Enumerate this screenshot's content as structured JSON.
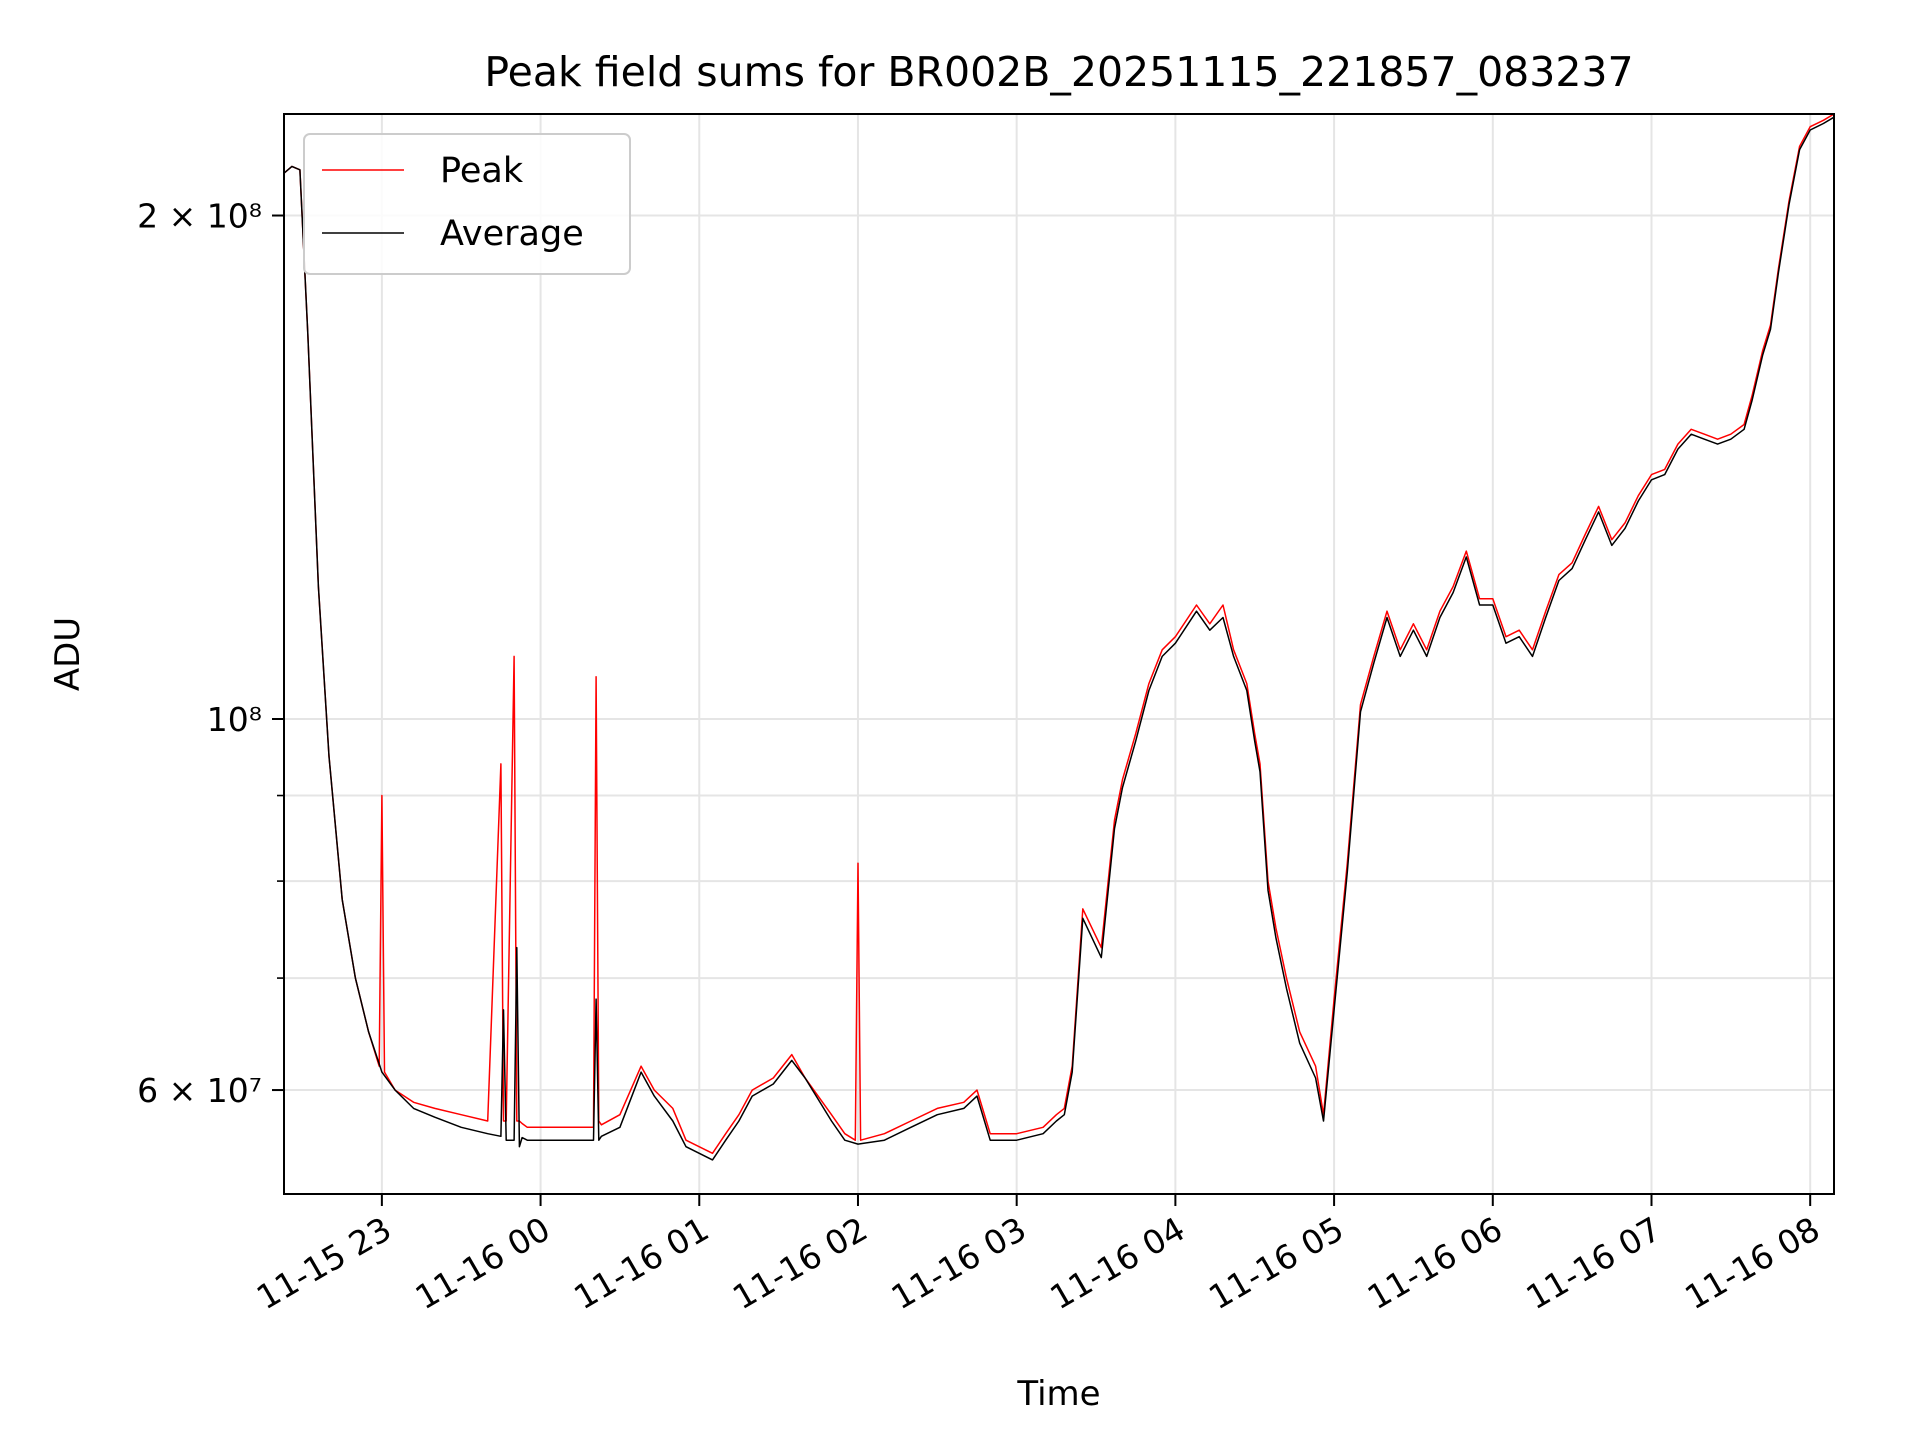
{
  "chart_data": {
    "type": "line",
    "title": "Peak field sums for BR002B_20251115_221857_083237",
    "xlabel": "Time",
    "ylabel": "ADU",
    "yscale": "log",
    "xlim": [
      "2025-11-15 22:23",
      "2025-11-16 08:09"
    ],
    "ylim": [
      52000000,
      230000000
    ],
    "x_ticks": [
      {
        "value": "2025-11-15 23:00",
        "label": "11-15 23"
      },
      {
        "value": "2025-11-16 00:00",
        "label": "11-16 00"
      },
      {
        "value": "2025-11-16 01:00",
        "label": "11-16 01"
      },
      {
        "value": "2025-11-16 02:00",
        "label": "11-16 02"
      },
      {
        "value": "2025-11-16 03:00",
        "label": "11-16 03"
      },
      {
        "value": "2025-11-16 04:00",
        "label": "11-16 04"
      },
      {
        "value": "2025-11-16 05:00",
        "label": "11-16 05"
      },
      {
        "value": "2025-11-16 06:00",
        "label": "11-16 06"
      },
      {
        "value": "2025-11-16 07:00",
        "label": "11-16 07"
      },
      {
        "value": "2025-11-16 08:00",
        "label": "11-16 08"
      }
    ],
    "y_ticks": [
      {
        "value": 60000000,
        "label": "6 × 10⁷"
      },
      {
        "value": 100000000,
        "label": "10⁸"
      },
      {
        "value": 200000000,
        "label": "2 × 10⁸"
      }
    ],
    "y_minor_ticks": [
      70000000,
      80000000,
      90000000
    ],
    "grid": true,
    "legend": "upper-left",
    "series": [
      {
        "name": "Peak",
        "color": "#ff0000",
        "x": [
          "2025-11-15 22:23",
          "2025-11-15 22:26",
          "2025-11-15 22:29",
          "2025-11-15 22:32",
          "2025-11-15 22:36",
          "2025-11-15 22:40",
          "2025-11-15 22:45",
          "2025-11-15 22:50",
          "2025-11-15 22:55",
          "2025-11-15 22:59",
          "2025-11-15 23:00",
          "2025-11-15 23:01",
          "2025-11-15 23:05",
          "2025-11-15 23:12",
          "2025-11-15 23:20",
          "2025-11-15 23:30",
          "2025-11-15 23:40",
          "2025-11-15 23:45",
          "2025-11-15 23:46",
          "2025-11-15 23:47",
          "2025-11-15 23:50",
          "2025-11-15 23:51",
          "2025-11-15 23:52",
          "2025-11-15 23:53",
          "2025-11-15 23:55",
          "2025-11-16 00:05",
          "2025-11-16 00:15",
          "2025-11-16 00:20",
          "2025-11-16 00:21",
          "2025-11-16 00:22",
          "2025-11-16 00:23",
          "2025-11-16 00:30",
          "2025-11-16 00:38",
          "2025-11-16 00:43",
          "2025-11-16 00:50",
          "2025-11-16 00:55",
          "2025-11-16 01:05",
          "2025-11-16 01:10",
          "2025-11-16 01:15",
          "2025-11-16 01:20",
          "2025-11-16 01:28",
          "2025-11-16 01:35",
          "2025-11-16 01:40",
          "2025-11-16 01:50",
          "2025-11-16 01:55",
          "2025-11-16 01:59",
          "2025-11-16 02:00",
          "2025-11-16 02:01",
          "2025-11-16 02:10",
          "2025-11-16 02:20",
          "2025-11-16 02:30",
          "2025-11-16 02:40",
          "2025-11-16 02:45",
          "2025-11-16 02:50",
          "2025-11-16 03:00",
          "2025-11-16 03:10",
          "2025-11-16 03:15",
          "2025-11-16 03:18",
          "2025-11-16 03:21",
          "2025-11-16 03:25",
          "2025-11-16 03:32",
          "2025-11-16 03:37",
          "2025-11-16 03:40",
          "2025-11-16 03:45",
          "2025-11-16 03:50",
          "2025-11-16 03:55",
          "2025-11-16 04:00",
          "2025-11-16 04:08",
          "2025-11-16 04:13",
          "2025-11-16 04:18",
          "2025-11-16 04:22",
          "2025-11-16 04:27",
          "2025-11-16 04:30",
          "2025-11-16 04:32",
          "2025-11-16 04:35",
          "2025-11-16 04:38",
          "2025-11-16 04:42",
          "2025-11-16 04:47",
          "2025-11-16 04:53",
          "2025-11-16 04:56",
          "2025-11-16 05:00",
          "2025-11-16 05:05",
          "2025-11-16 05:10",
          "2025-11-16 05:15",
          "2025-11-16 05:20",
          "2025-11-16 05:25",
          "2025-11-16 05:30",
          "2025-11-16 05:35",
          "2025-11-16 05:40",
          "2025-11-16 05:45",
          "2025-11-16 05:50",
          "2025-11-16 05:55",
          "2025-11-16 06:00",
          "2025-11-16 06:05",
          "2025-11-16 06:10",
          "2025-11-16 06:15",
          "2025-11-16 06:20",
          "2025-11-16 06:25",
          "2025-11-16 06:30",
          "2025-11-16 06:35",
          "2025-11-16 06:40",
          "2025-11-16 06:45",
          "2025-11-16 06:50",
          "2025-11-16 06:55",
          "2025-11-16 07:00",
          "2025-11-16 07:05",
          "2025-11-16 07:10",
          "2025-11-16 07:15",
          "2025-11-16 07:20",
          "2025-11-16 07:25",
          "2025-11-16 07:30",
          "2025-11-16 07:35",
          "2025-11-16 07:38",
          "2025-11-16 07:42",
          "2025-11-16 07:45",
          "2025-11-16 07:48",
          "2025-11-16 07:52",
          "2025-11-16 07:56",
          "2025-11-16 08:00",
          "2025-11-16 08:05",
          "2025-11-16 08:09"
        ],
        "y": [
          212000000,
          214000000,
          213000000,
          170000000,
          120000000,
          95000000,
          78000000,
          70000000,
          65000000,
          62000000,
          90000000,
          61500000,
          60000000,
          59000000,
          58500000,
          58000000,
          57500000,
          94000000,
          57500000,
          57500000,
          109000000,
          57500000,
          57500000,
          57300000,
          57000000,
          57000000,
          57000000,
          57000000,
          106000000,
          57500000,
          57200000,
          58000000,
          62000000,
          60000000,
          58500000,
          56000000,
          55000000,
          56500000,
          58000000,
          60000000,
          61000000,
          63000000,
          61000000,
          58000000,
          56500000,
          56000000,
          82000000,
          56000000,
          56500000,
          57500000,
          58500000,
          59000000,
          60000000,
          56500000,
          56500000,
          57000000,
          58000000,
          58500000,
          62000000,
          77000000,
          73000000,
          87000000,
          92000000,
          98000000,
          105000000,
          110000000,
          112000000,
          117000000,
          114000000,
          117000000,
          110000000,
          105000000,
          98000000,
          94000000,
          80000000,
          75000000,
          70000000,
          65000000,
          62000000,
          58000000,
          68000000,
          82000000,
          102000000,
          109000000,
          116000000,
          110000000,
          114000000,
          110000000,
          116000000,
          120000000,
          126000000,
          118000000,
          118000000,
          112000000,
          113000000,
          110000000,
          116000000,
          122000000,
          124000000,
          129000000,
          134000000,
          128000000,
          131000000,
          136000000,
          140000000,
          141000000,
          146000000,
          149000000,
          148000000,
          147000000,
          148000000,
          150000000,
          156000000,
          166000000,
          172000000,
          186000000,
          204000000,
          220000000,
          226000000,
          228000000,
          230000000
        ]
      },
      {
        "name": "Average",
        "color": "#000000",
        "x": [
          "2025-11-15 22:23",
          "2025-11-15 22:26",
          "2025-11-15 22:29",
          "2025-11-15 22:32",
          "2025-11-15 22:36",
          "2025-11-15 22:40",
          "2025-11-15 22:45",
          "2025-11-15 22:50",
          "2025-11-15 22:55",
          "2025-11-15 23:00",
          "2025-11-15 23:05",
          "2025-11-15 23:12",
          "2025-11-15 23:20",
          "2025-11-15 23:30",
          "2025-11-15 23:40",
          "2025-11-15 23:45",
          "2025-11-15 23:46",
          "2025-11-15 23:47",
          "2025-11-15 23:50",
          "2025-11-15 23:51",
          "2025-11-15 23:52",
          "2025-11-15 23:53",
          "2025-11-15 23:55",
          "2025-11-16 00:05",
          "2025-11-16 00:15",
          "2025-11-16 00:20",
          "2025-11-16 00:21",
          "2025-11-16 00:22",
          "2025-11-16 00:23",
          "2025-11-16 00:30",
          "2025-11-16 00:38",
          "2025-11-16 00:43",
          "2025-11-16 00:50",
          "2025-11-16 00:55",
          "2025-11-16 01:05",
          "2025-11-16 01:10",
          "2025-11-16 01:15",
          "2025-11-16 01:20",
          "2025-11-16 01:28",
          "2025-11-16 01:35",
          "2025-11-16 01:40",
          "2025-11-16 01:50",
          "2025-11-16 01:55",
          "2025-11-16 02:00",
          "2025-11-16 02:10",
          "2025-11-16 02:20",
          "2025-11-16 02:30",
          "2025-11-16 02:40",
          "2025-11-16 02:45",
          "2025-11-16 02:50",
          "2025-11-16 03:00",
          "2025-11-16 03:10",
          "2025-11-16 03:15",
          "2025-11-16 03:18",
          "2025-11-16 03:21",
          "2025-11-16 03:25",
          "2025-11-16 03:32",
          "2025-11-16 03:37",
          "2025-11-16 03:40",
          "2025-11-16 03:45",
          "2025-11-16 03:50",
          "2025-11-16 03:55",
          "2025-11-16 04:00",
          "2025-11-16 04:08",
          "2025-11-16 04:13",
          "2025-11-16 04:18",
          "2025-11-16 04:22",
          "2025-11-16 04:27",
          "2025-11-16 04:30",
          "2025-11-16 04:32",
          "2025-11-16 04:35",
          "2025-11-16 04:38",
          "2025-11-16 04:42",
          "2025-11-16 04:47",
          "2025-11-16 04:53",
          "2025-11-16 04:56",
          "2025-11-16 05:00",
          "2025-11-16 05:05",
          "2025-11-16 05:10",
          "2025-11-16 05:15",
          "2025-11-16 05:20",
          "2025-11-16 05:25",
          "2025-11-16 05:30",
          "2025-11-16 05:35",
          "2025-11-16 05:40",
          "2025-11-16 05:45",
          "2025-11-16 05:50",
          "2025-11-16 05:55",
          "2025-11-16 06:00",
          "2025-11-16 06:05",
          "2025-11-16 06:10",
          "2025-11-16 06:15",
          "2025-11-16 06:20",
          "2025-11-16 06:25",
          "2025-11-16 06:30",
          "2025-11-16 06:35",
          "2025-11-16 06:40",
          "2025-11-16 06:45",
          "2025-11-16 06:50",
          "2025-11-16 06:55",
          "2025-11-16 07:00",
          "2025-11-16 07:05",
          "2025-11-16 07:10",
          "2025-11-16 07:15",
          "2025-11-16 07:20",
          "2025-11-16 07:25",
          "2025-11-16 07:30",
          "2025-11-16 07:35",
          "2025-11-16 07:38",
          "2025-11-16 07:42",
          "2025-11-16 07:45",
          "2025-11-16 07:48",
          "2025-11-16 07:52",
          "2025-11-16 07:56",
          "2025-11-16 08:00",
          "2025-11-16 08:05",
          "2025-11-16 08:09"
        ],
        "y": [
          212000000,
          214000000,
          213000000,
          170000000,
          120000000,
          95000000,
          78000000,
          70000000,
          65000000,
          61500000,
          60000000,
          58500000,
          57800000,
          57000000,
          56500000,
          56300000,
          67000000,
          56000000,
          56000000,
          73000000,
          55500000,
          56200000,
          56000000,
          56000000,
          56000000,
          56000000,
          68000000,
          56000000,
          56300000,
          57000000,
          61500000,
          59500000,
          57500000,
          55500000,
          54500000,
          56000000,
          57500000,
          59500000,
          60500000,
          62500000,
          61000000,
          57500000,
          56000000,
          55700000,
          56000000,
          57000000,
          58000000,
          58500000,
          59500000,
          56000000,
          56000000,
          56500000,
          57500000,
          58000000,
          61500000,
          76000000,
          72000000,
          86000000,
          91000000,
          97000000,
          104000000,
          109000000,
          111000000,
          116000000,
          113000000,
          115000000,
          109000000,
          104000000,
          97000000,
          93000000,
          79000000,
          74000000,
          69000000,
          64000000,
          61000000,
          57500000,
          67000000,
          81000000,
          101000000,
          108000000,
          115000000,
          109000000,
          113000000,
          109000000,
          115000000,
          119000000,
          125000000,
          117000000,
          117000000,
          111000000,
          112000000,
          109000000,
          115000000,
          121000000,
          123000000,
          128000000,
          133000000,
          127000000,
          130000000,
          135000000,
          139000000,
          140000000,
          145000000,
          148000000,
          147000000,
          146000000,
          147000000,
          149000000,
          155000000,
          165000000,
          171000000,
          185000000,
          203000000,
          219000000,
          225000000,
          227000000,
          229000000
        ]
      }
    ]
  }
}
